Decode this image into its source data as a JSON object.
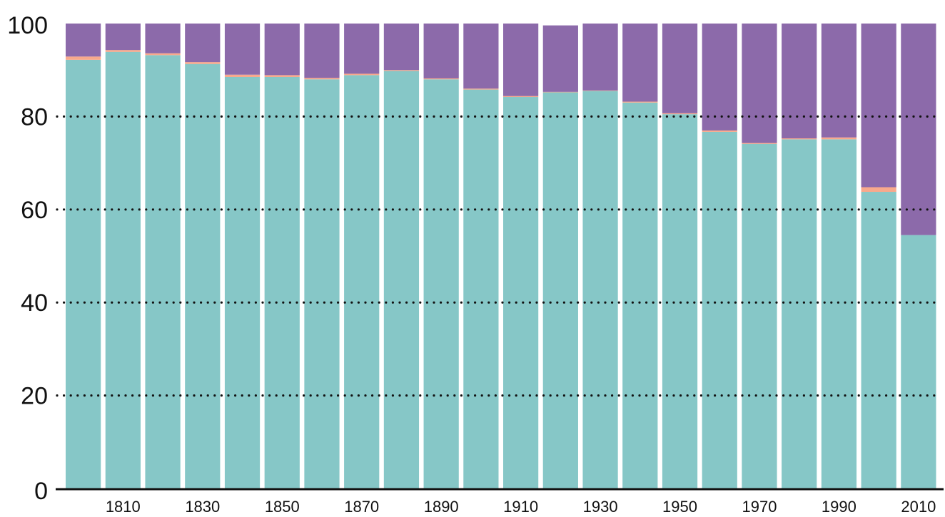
{
  "chart_data": {
    "type": "bar",
    "stacked": true,
    "percent": true,
    "categories": [
      "1800",
      "1810",
      "1820",
      "1830",
      "1840",
      "1850",
      "1860",
      "1870",
      "1880",
      "1890",
      "1900",
      "1910",
      "1920",
      "1930",
      "1940",
      "1950",
      "1960",
      "1970",
      "1980",
      "1990",
      "2000",
      "2010"
    ],
    "x_tick_labels": [
      "1810",
      "1830",
      "1850",
      "1870",
      "1890",
      "1910",
      "1930",
      "1950",
      "1970",
      "1990",
      "2010"
    ],
    "y_ticks": [
      0,
      20,
      40,
      60,
      80,
      100
    ],
    "ylim": [
      0,
      100
    ],
    "grid": "dotted horizontal at 20, 40, 60, 80",
    "series": [
      {
        "color": "#86c7c7",
        "values": [
          92.2,
          93.9,
          93.2,
          91.3,
          88.5,
          88.5,
          88.0,
          88.9,
          89.8,
          88.0,
          85.8,
          84.2,
          85.2,
          85.5,
          83.0,
          80.5,
          76.7,
          74.1,
          75.1,
          75.1,
          63.8,
          54.5
        ]
      },
      {
        "color": "#f8a98c",
        "values": [
          0.7,
          0.4,
          0.4,
          0.4,
          0.5,
          0.4,
          0.3,
          0.3,
          0.2,
          0.2,
          0.2,
          0.2,
          0.1,
          0.1,
          0.2,
          0.2,
          0.3,
          0.2,
          0.2,
          0.4,
          1.0,
          0.0
        ]
      },
      {
        "color": "#8c6aaa",
        "values": [
          7.1,
          5.7,
          6.4,
          8.3,
          11.0,
          11.1,
          11.7,
          10.8,
          10.0,
          11.8,
          14.0,
          15.6,
          14.3,
          14.4,
          16.8,
          19.3,
          23.0,
          25.7,
          24.7,
          24.5,
          35.2,
          45.5
        ]
      }
    ]
  }
}
